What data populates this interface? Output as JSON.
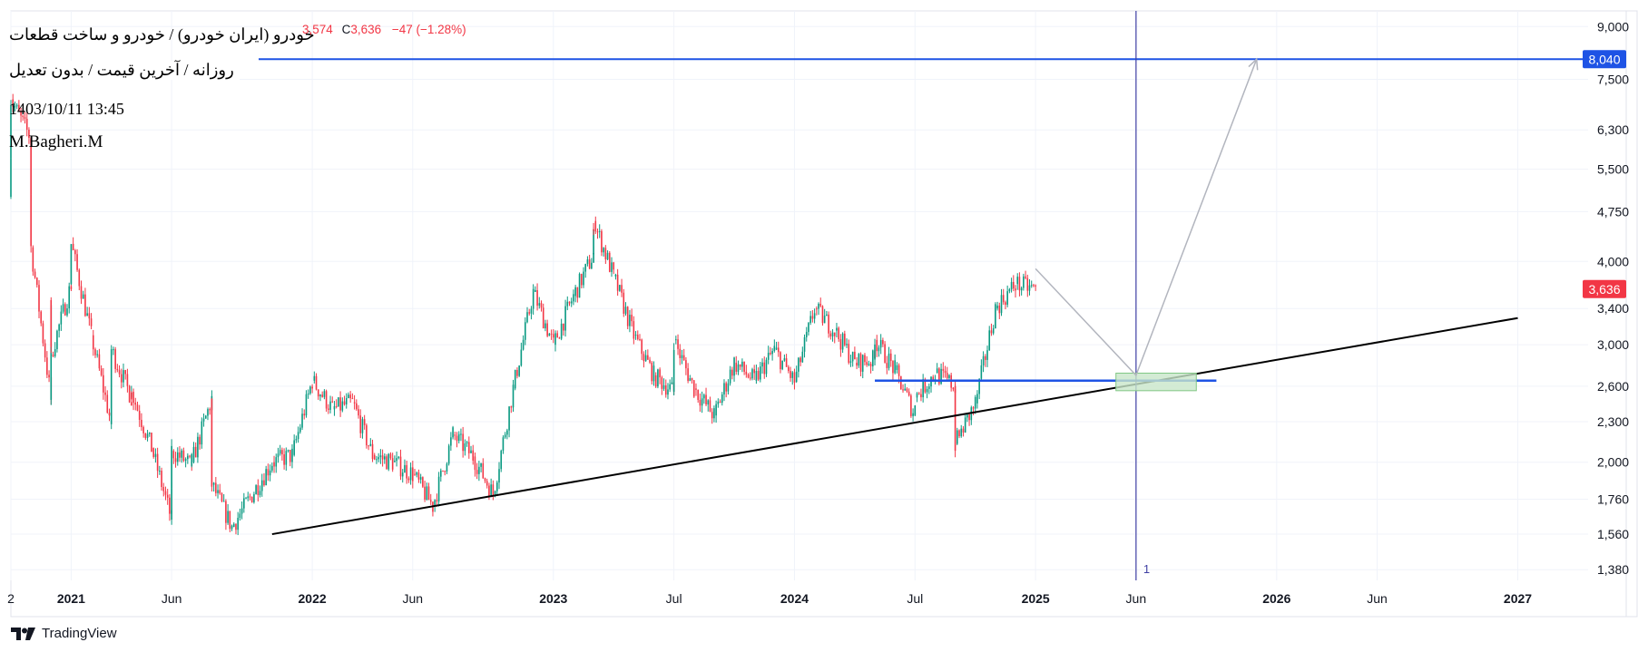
{
  "header": {
    "symbol_title": "خودرو (ایران خودرو) / خودرو و ساخت قطعات",
    "subtitle": "روزانه / آخرین قیمت / بدون تعدیل",
    "datetime": "1403/10/11 13:45",
    "author": "M.Bagheri.M",
    "ohlc_low_part": "3,574",
    "close_label": "C",
    "close_value": "3,636",
    "change": "−47 (−1.28%)"
  },
  "brand": {
    "name": "TradingView",
    "logo_icon": "tradingview-logo-icon"
  },
  "colors": {
    "up": "#089981",
    "down": "#f23645",
    "blue_line": "#1e53e5",
    "trendline": "#000000",
    "crosshair": "#3f3fa3",
    "projection": "#b2b5be",
    "zone_fill": "#c8e6c9"
  },
  "chart_data": {
    "type": "candlestick",
    "scale": "log",
    "ylim": [
      1330,
      9500
    ],
    "y_ticks": [
      "9,000",
      "7,500",
      "6,300",
      "5,500",
      "4,750",
      "4,000",
      "3,400",
      "3,000",
      "2,600",
      "2,300",
      "2,000",
      "1,760",
      "1,560",
      "1,380"
    ],
    "x_ticks": [
      "2",
      "2021",
      "Jun",
      "2022",
      "Jun",
      "2023",
      "Jul",
      "2024",
      "Jul",
      "2025",
      "Jun",
      "2026",
      "Jun",
      "2027"
    ],
    "last_price": "3,636",
    "target_level": "8,040",
    "crosshair_label": "1",
    "price_path": [
      [
        "2020-10",
        5000
      ],
      [
        "2020-10",
        7000
      ],
      [
        "2020-11",
        6100
      ],
      [
        "2020-11",
        4200
      ],
      [
        "2020-12",
        2480
      ],
      [
        "2020-12",
        3500
      ],
      [
        "2020-12",
        2900
      ],
      [
        "2021-01",
        3700
      ],
      [
        "2021-01",
        4250
      ],
      [
        "2021-02",
        3100
      ],
      [
        "2021-03",
        2280
      ],
      [
        "2021-03",
        2950
      ],
      [
        "2021-04",
        2500
      ],
      [
        "2021-04",
        2550
      ],
      [
        "2021-05",
        2100
      ],
      [
        "2021-06",
        1640
      ],
      [
        "2021-06",
        2080
      ],
      [
        "2021-07",
        1980
      ],
      [
        "2021-07",
        2000
      ],
      [
        "2021-08",
        2490
      ],
      [
        "2021-08",
        1850
      ],
      [
        "2021-09",
        1600
      ],
      [
        "2021-11",
        2000
      ],
      [
        "2021-12",
        2050
      ],
      [
        "2022-01",
        2650
      ],
      [
        "2022-02",
        2400
      ],
      [
        "2022-03",
        2460
      ],
      [
        "2022-04",
        2050
      ],
      [
        "2022-05",
        2000
      ],
      [
        "2022-06",
        1920
      ],
      [
        "2022-07",
        1720
      ],
      [
        "2022-08",
        2200
      ],
      [
        "2022-09",
        2040
      ],
      [
        "2022-10",
        1790
      ],
      [
        "2022-11",
        2580
      ],
      [
        "2022-12",
        3600
      ],
      [
        "2023-01",
        3000
      ],
      [
        "2023-02",
        3550
      ],
      [
        "2023-03",
        4100
      ],
      [
        "2023-03",
        4600
      ],
      [
        "2023-04",
        3800
      ],
      [
        "2023-05",
        3100
      ],
      [
        "2023-06",
        2700
      ],
      [
        "2023-07",
        2550
      ],
      [
        "2023-07",
        3050
      ],
      [
        "2023-08",
        2580
      ],
      [
        "2023-09",
        2350
      ],
      [
        "2023-10",
        2820
      ],
      [
        "2023-11",
        2650
      ],
      [
        "2023-12",
        2950
      ],
      [
        "2024-01",
        2640
      ],
      [
        "2024-02",
        3400
      ],
      [
        "2024-03",
        3150
      ],
      [
        "2024-04",
        2820
      ],
      [
        "2024-05",
        2850
      ],
      [
        "2024-05",
        3050
      ],
      [
        "2024-06",
        2750
      ],
      [
        "2024-07",
        2350
      ],
      [
        "2024-07",
        2500
      ],
      [
        "2024-08",
        2720
      ],
      [
        "2024-09",
        2600
      ],
      [
        "2024-09",
        2130
      ],
      [
        "2024-10",
        2450
      ],
      [
        "2024-11",
        3400
      ],
      [
        "2024-12",
        3700
      ],
      [
        "2025-01",
        3636
      ]
    ],
    "annotations": [
      {
        "type": "trendline",
        "from": [
          "2021-11",
          1560
        ],
        "to": [
          "2027-01",
          3290
        ]
      },
      {
        "type": "hline",
        "price": 8040,
        "label": "8,040"
      },
      {
        "type": "hline_segment",
        "from": "2024-05",
        "to": "2025-10",
        "price": 2650
      },
      {
        "type": "vline",
        "time": "2025-06",
        "label": "1"
      },
      {
        "type": "zone",
        "from": "2025-05",
        "to": "2025-09",
        "low": 2560,
        "high": 2720
      },
      {
        "type": "projection",
        "points": [
          [
            "2025-01",
            3900
          ],
          [
            "2025-06",
            2700
          ],
          [
            "2025-12",
            8040
          ]
        ]
      }
    ]
  }
}
